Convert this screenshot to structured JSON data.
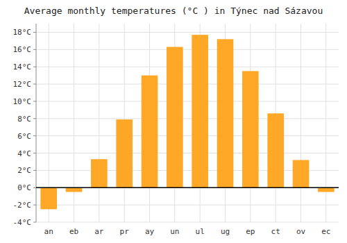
{
  "chart_data": {
    "type": "bar",
    "title": "Average monthly temperatures (°C ) in Týnec nad Sázavou",
    "categories": [
      "an",
      "eb",
      "ar",
      "pr",
      "ay",
      "un",
      "ul",
      "ug",
      "ep",
      "ct",
      "ov",
      "ec"
    ],
    "values": [
      -2.5,
      -0.5,
      3.3,
      7.9,
      13.0,
      16.3,
      17.7,
      17.2,
      13.5,
      8.6,
      3.2,
      -0.5
    ],
    "color": "#FFA726",
    "ylim": [
      -4,
      19
    ],
    "yticks": [
      {
        "value": -4,
        "label": "-4°C"
      },
      {
        "value": -2,
        "label": "-2°C"
      },
      {
        "value": 0,
        "label": "0°C"
      },
      {
        "value": 2,
        "label": "2°C"
      },
      {
        "value": 4,
        "label": "4°C"
      },
      {
        "value": 6,
        "label": "6°C"
      },
      {
        "value": 8,
        "label": "8°C"
      },
      {
        "value": 10,
        "label": "10°C"
      },
      {
        "value": 12,
        "label": "12°C"
      },
      {
        "value": 14,
        "label": "14°C"
      },
      {
        "value": 16,
        "label": "16°C"
      },
      {
        "value": 18,
        "label": "18°C"
      }
    ],
    "grid": true
  }
}
